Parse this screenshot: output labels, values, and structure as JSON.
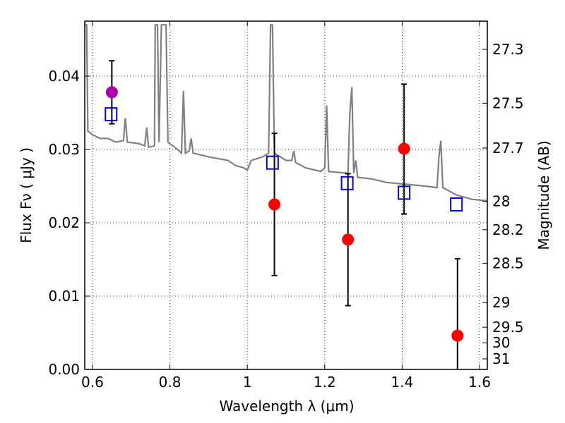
{
  "chart_data": {
    "type": "scatter",
    "title": "",
    "xlabel": "Wavelength  λ (μm)",
    "ylabel": "Flux  Fν  ( μJy )",
    "ylabel_right": "Magnitude (AB)",
    "xlim": [
      0.58,
      1.62
    ],
    "ylim": [
      0.0,
      0.0475
    ],
    "grid": true,
    "x_ticks": [
      0.6,
      0.8,
      1.0,
      1.2,
      1.4,
      1.6
    ],
    "x_tick_labels": [
      "0.6",
      "0.8",
      "1",
      "1.2",
      "1.4",
      "1.6"
    ],
    "y_ticks": [
      0.0,
      0.01,
      0.02,
      0.03,
      0.04
    ],
    "y_tick_labels": [
      "0.00",
      "0.01",
      "0.02",
      "0.03",
      "0.04"
    ],
    "right_axis": {
      "tick_labels": [
        "27.3",
        "27.5",
        "27.7",
        "28",
        "28.2",
        "28.5",
        "29",
        "29.5",
        "30",
        "31"
      ],
      "tick_values": [
        27.3,
        27.5,
        27.7,
        28.0,
        28.2,
        28.5,
        29.0,
        29.5,
        30.0,
        31.0
      ]
    },
    "series": [
      {
        "marker": "line",
        "color": "#808080",
        "points": [
          [
            0.58,
            0.047
          ],
          [
            0.585,
            0.047
          ],
          [
            0.588,
            0.0325
          ],
          [
            0.6,
            0.032
          ],
          [
            0.62,
            0.0315
          ],
          [
            0.64,
            0.0315
          ],
          [
            0.66,
            0.031
          ],
          [
            0.68,
            0.0312
          ],
          [
            0.685,
            0.0343
          ],
          [
            0.69,
            0.031
          ],
          [
            0.72,
            0.0308
          ],
          [
            0.735,
            0.0305
          ],
          [
            0.74,
            0.033
          ],
          [
            0.745,
            0.0303
          ],
          [
            0.76,
            0.0305
          ],
          [
            0.762,
            0.047
          ],
          [
            0.768,
            0.047
          ],
          [
            0.772,
            0.031
          ],
          [
            0.778,
            0.047
          ],
          [
            0.79,
            0.047
          ],
          [
            0.795,
            0.031
          ],
          [
            0.82,
            0.03
          ],
          [
            0.83,
            0.0295
          ],
          [
            0.835,
            0.038
          ],
          [
            0.84,
            0.0295
          ],
          [
            0.85,
            0.0298
          ],
          [
            0.855,
            0.0315
          ],
          [
            0.86,
            0.0295
          ],
          [
            0.9,
            0.029
          ],
          [
            0.95,
            0.0285
          ],
          [
            0.97,
            0.0278
          ],
          [
            0.99,
            0.0275
          ],
          [
            1.0,
            0.0272
          ],
          [
            1.01,
            0.0285
          ],
          [
            1.04,
            0.029
          ],
          [
            1.055,
            0.0295
          ],
          [
            1.06,
            0.047
          ],
          [
            1.065,
            0.047
          ],
          [
            1.07,
            0.0295
          ],
          [
            1.1,
            0.0285
          ],
          [
            1.115,
            0.0285
          ],
          [
            1.12,
            0.0298
          ],
          [
            1.125,
            0.0282
          ],
          [
            1.15,
            0.0275
          ],
          [
            1.19,
            0.027
          ],
          [
            1.2,
            0.0275
          ],
          [
            1.205,
            0.036
          ],
          [
            1.21,
            0.027
          ],
          [
            1.25,
            0.0268
          ],
          [
            1.26,
            0.0268
          ],
          [
            1.265,
            0.035
          ],
          [
            1.27,
            0.0385
          ],
          [
            1.275,
            0.0268
          ],
          [
            1.28,
            0.0285
          ],
          [
            1.285,
            0.0262
          ],
          [
            1.32,
            0.026
          ],
          [
            1.36,
            0.0255
          ],
          [
            1.42,
            0.0252
          ],
          [
            1.46,
            0.025
          ],
          [
            1.49,
            0.0248
          ],
          [
            1.495,
            0.029
          ],
          [
            1.5,
            0.0312
          ],
          [
            1.505,
            0.0248
          ],
          [
            1.54,
            0.0238
          ],
          [
            1.58,
            0.0232
          ],
          [
            1.62,
            0.023
          ]
        ]
      },
      {
        "marker": "open-square",
        "color": "#0000ff",
        "points": [
          [
            0.648,
            0.0348
          ],
          [
            1.065,
            0.0282
          ],
          [
            1.258,
            0.0254
          ],
          [
            1.405,
            0.0241
          ],
          [
            1.54,
            0.0225
          ]
        ]
      },
      {
        "marker": "filled-circle",
        "color": "#ff0000",
        "points": [
          {
            "x": 1.07,
            "y": 0.0225,
            "lo": 0.0128,
            "hi": 0.0322
          },
          {
            "x": 1.26,
            "y": 0.0177,
            "lo": 0.0087,
            "hi": 0.0267
          },
          {
            "x": 1.405,
            "y": 0.0301,
            "lo": 0.0212,
            "hi": 0.0389
          },
          {
            "x": 1.543,
            "y": 0.0046,
            "lo": 0.0,
            "hi": 0.0151
          }
        ]
      },
      {
        "marker": "filled-circle",
        "color": "#aa00aa",
        "points": [
          {
            "x": 0.65,
            "y": 0.0378,
            "lo": 0.0335,
            "hi": 0.0421
          }
        ]
      }
    ]
  }
}
